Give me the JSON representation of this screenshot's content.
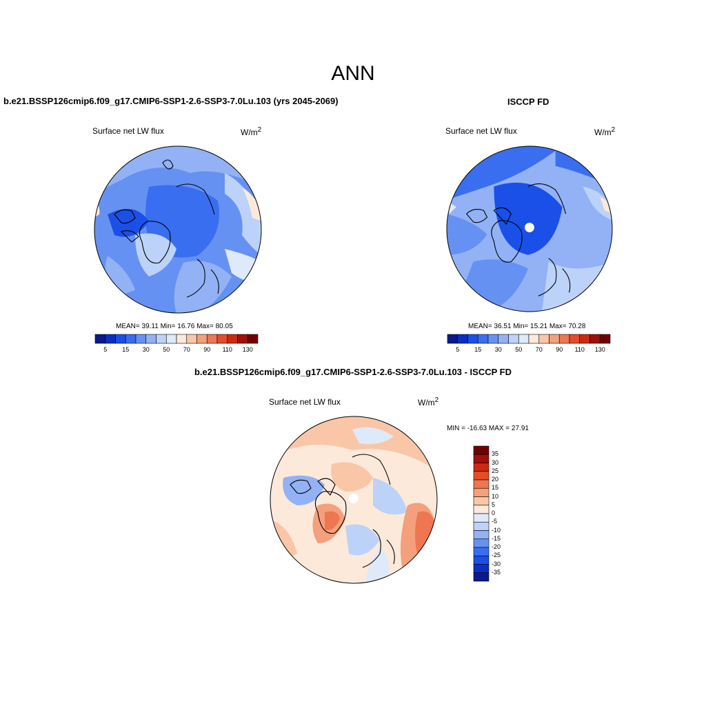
{
  "title": "ANN",
  "panels": [
    {
      "title": "b.e21.BSSP126cmip6.f09_g17.CMIP6-SSP1-2.6-SSP3-7.0Lu.103 (yrs 2045-2069)",
      "variable": "Surface net LW flux",
      "units": "W/m",
      "units_sup": "2",
      "stats": "MEAN=  39.11  Min=  16.76  Max=  80.05",
      "colorbar_labels": [
        "5",
        "15",
        "30",
        "50",
        "70",
        "90",
        "110",
        "130"
      ]
    },
    {
      "title": "ISCCP FD",
      "variable": "Surface net LW flux",
      "units": "W/m",
      "units_sup": "2",
      "stats": "MEAN=  36.51  Min=  15.21  Max=  70.28",
      "colorbar_labels": [
        "5",
        "15",
        "30",
        "50",
        "70",
        "90",
        "110",
        "130"
      ]
    },
    {
      "title": "b.e21.BSSP126cmip6.f09_g17.CMIP6-SSP1-2.6-SSP3-7.0Lu.103 - ISCCP FD",
      "variable": "Surface net LW flux",
      "units": "W/m",
      "units_sup": "2",
      "stats": "MIN = -16.63 MAX =  27.91",
      "colorbar_labels": [
        "35",
        "30",
        "25",
        "20",
        "15",
        "10",
        "5",
        "0",
        "-5",
        "-10",
        "-15",
        "-20",
        "-25",
        "-30",
        "-35"
      ]
    }
  ],
  "colors": {
    "abs_scale": [
      "#0a1a8a",
      "#0c2ec4",
      "#1a4fe8",
      "#3a6ef0",
      "#6591f2",
      "#92b2f5",
      "#bcd2f8",
      "#deeaf9",
      "#fde9d9",
      "#f9c6a8",
      "#f4a07c",
      "#ee7650",
      "#e64c2a",
      "#cc2a10",
      "#a01006",
      "#700000"
    ],
    "diff_scale": [
      "#700000",
      "#a01006",
      "#cc2a10",
      "#e64c2a",
      "#ee7650",
      "#f4a07c",
      "#f9c6a8",
      "#fde9d9",
      "#deeaf9",
      "#bcd2f8",
      "#92b2f5",
      "#6591f2",
      "#3a6ef0",
      "#1a4fe8",
      "#0c2ec4",
      "#0a1a8a"
    ]
  }
}
